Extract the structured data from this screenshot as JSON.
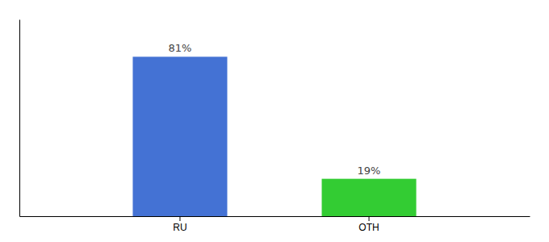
{
  "chart_data": {
    "type": "bar",
    "categories": [
      "RU",
      "OTH"
    ],
    "values": [
      81,
      19
    ],
    "value_labels": [
      "81%",
      "19%"
    ],
    "colors": [
      "#4472d4",
      "#33cc33"
    ],
    "ylim": [
      0,
      100
    ],
    "data_labels": true,
    "tick_labels": "x"
  }
}
